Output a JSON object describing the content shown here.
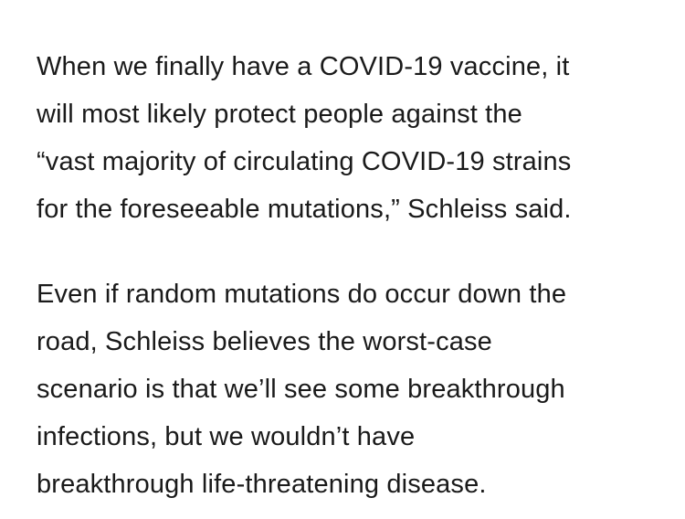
{
  "article": {
    "paragraphs": [
      {
        "lines": [
          "When we finally have a COVID-19 vaccine, it",
          "will most likely protect people against the",
          "“vast majority of circulating COVID-19 strains",
          "for the foreseeable mutations,” Schleiss said."
        ]
      },
      {
        "lines": [
          "Even if random mutations do occur down the",
          "road, Schleiss believes the worst-case",
          "scenario is that we’ll see some breakthrough",
          "infections, but we wouldn’t have",
          "breakthrough life-threatening disease."
        ]
      }
    ]
  }
}
